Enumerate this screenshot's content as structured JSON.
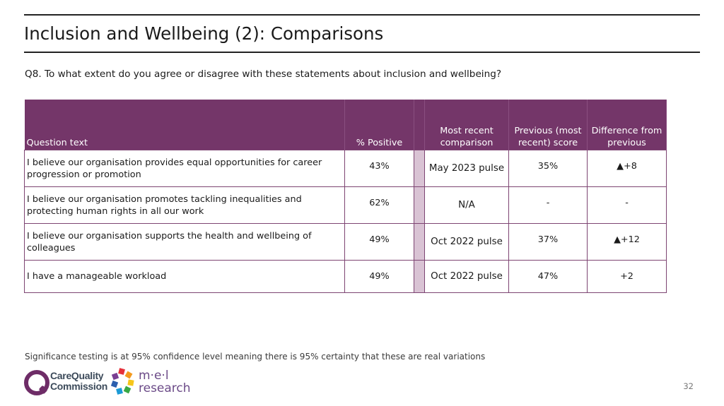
{
  "slide": {
    "title": "Inclusion and Wellbeing (2): Comparisons",
    "question": "Q8. To what extent do you agree or disagree with these statements about inclusion and wellbeing?",
    "footnote": "Significance testing is at 95% confidence level meaning there is 95% certainty that these are real variations",
    "page_number": "32"
  },
  "table": {
    "headers": {
      "question_text": "Question text",
      "positive": "% Positive",
      "comparison": "Most recent comparison",
      "previous": "Previous (most recent) score",
      "difference": "Difference from previous"
    },
    "rows": [
      {
        "question": "I believe our organisation provides equal opportunities for career progression or promotion",
        "positive": "43%",
        "comparison": "May 2023 pulse",
        "previous": "35%",
        "difference": "▲+8"
      },
      {
        "question": "I believe our organisation promotes tackling inequalities and protecting human rights in all our work",
        "positive": "62%",
        "comparison": "N/A",
        "previous": "-",
        "difference": "-"
      },
      {
        "question": "I believe our organisation supports the health and wellbeing of colleagues",
        "positive": "49%",
        "comparison": "Oct 2022 pulse",
        "previous": "37%",
        "difference": "▲+12"
      },
      {
        "question": "I have a manageable workload",
        "positive": "49%",
        "comparison": "Oct 2022 pulse",
        "previous": "47%",
        "difference": "+2"
      }
    ]
  },
  "logos": {
    "cqc": {
      "line1": "CareQuality",
      "line2": "Commission"
    },
    "mel": {
      "line1": "m·e·l",
      "line2": "research"
    }
  },
  "colors": {
    "header_purple": "#743669",
    "spacer_lilac": "#d9c3d4",
    "border_purple": "#7d4472"
  }
}
